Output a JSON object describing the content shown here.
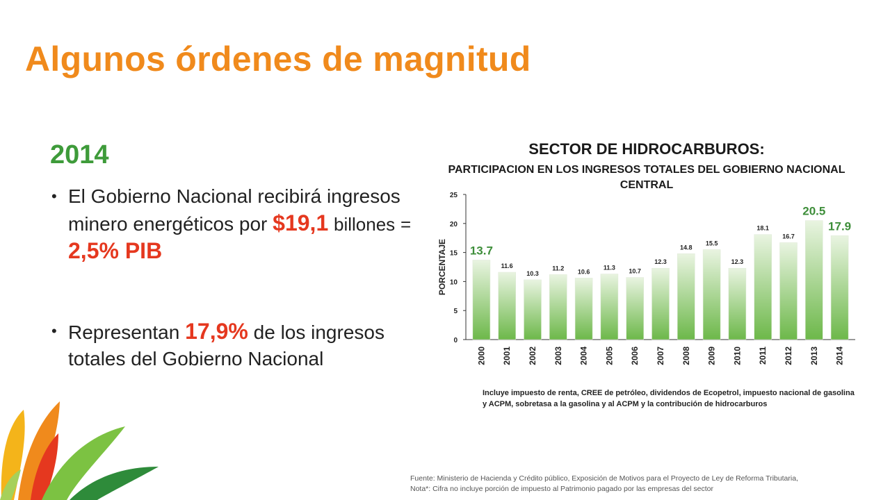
{
  "slide": {
    "title": "Algunos órdenes de magnitud",
    "year": "2014",
    "bullet1": {
      "text_a": "El Gobierno Nacional recibirá ingresos minero energéticos por",
      "amount": "$19,1",
      "text_b": "billones",
      "eq": "=",
      "pib": "2,5% PIB"
    },
    "bullet2": {
      "text_a": "Representan",
      "pct": "17,9%",
      "text_b": "de los ingresos totales del Gobierno Nacional"
    },
    "source_line1": "Fuente: Ministerio de Hacienda y Crédito público, Exposición de Motivos para el Proyecto de Ley de Reforma Tributaria,",
    "source_line2": "Nota*: Cifra no incluye  porción de impuesto al Patrimonio pagado por las empresas del sector"
  },
  "colors": {
    "title": "#F08A1C",
    "year": "#3E9B3A",
    "highlight": "#E5381F",
    "bar_top": "#E9F4E1",
    "bar_bottom": "#6DB84A",
    "big_label": "#3E8E3A"
  },
  "chart_data": {
    "type": "bar",
    "title": "SECTOR DE HIDROCARBUROS:",
    "subtitle": "PARTICIPACION EN LOS INGRESOS TOTALES DEL GOBIERNO NACIONAL CENTRAL",
    "ylabel": "PORCENTAJE",
    "xlabel": "",
    "ylim": [
      0,
      25
    ],
    "yticks": [
      0,
      5,
      10,
      15,
      20,
      25
    ],
    "categories": [
      "2000",
      "2001",
      "2002",
      "2003",
      "2004",
      "2005",
      "2006",
      "2007",
      "2008",
      "2009",
      "2010",
      "2011",
      "2012",
      "2013",
      "2014"
    ],
    "values": [
      13.7,
      11.6,
      10.3,
      11.2,
      10.6,
      11.3,
      10.7,
      12.3,
      14.8,
      15.5,
      12.3,
      18.1,
      16.7,
      20.5,
      17.9
    ],
    "value_labels": [
      "13.7",
      "11.6",
      "10.3",
      "11.2",
      "10.6",
      "11.3",
      "10.7",
      "12.3",
      "14.8",
      "15.5",
      "12.3",
      "18.1",
      "16.7",
      "20.5",
      "17.9"
    ],
    "emphasized_labels": [
      "2000",
      "2013",
      "2014"
    ],
    "grid": false,
    "legend": "none",
    "note": "Incluye impuesto de renta, CREE de petróleo, dividendos de Ecopetrol, impuesto nacional de gasolina y ACPM, sobretasa a la gasolina y al ACPM y la contribución de hidrocarburos"
  }
}
